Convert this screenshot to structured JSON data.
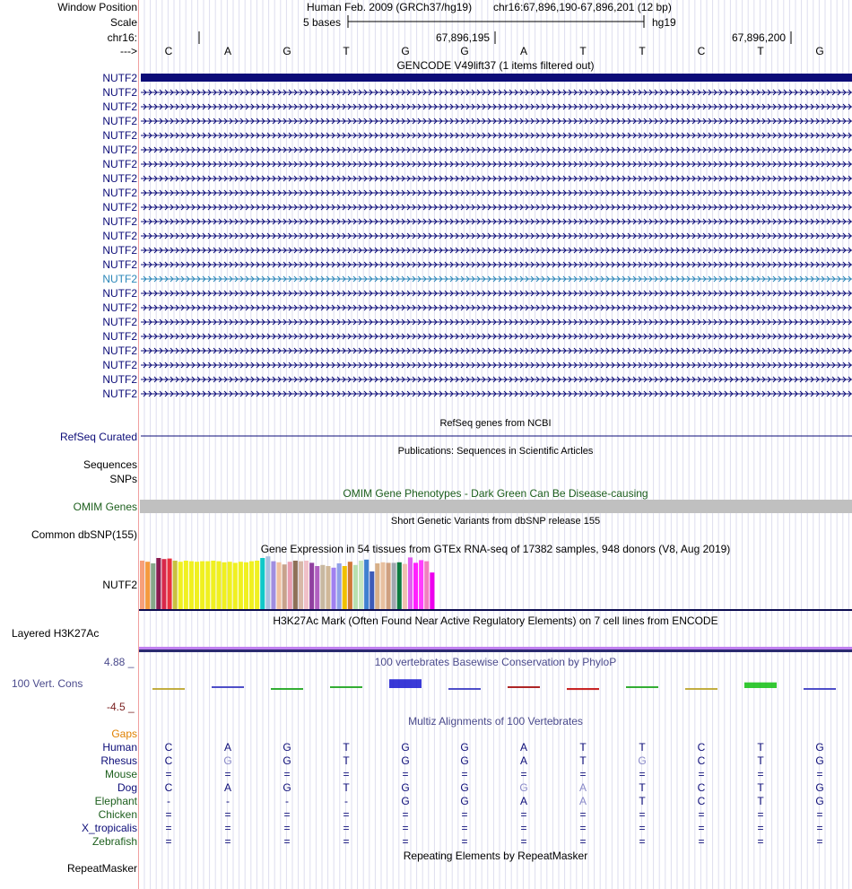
{
  "header": {
    "window_position_label": "Window Position",
    "assembly_text": "Human Feb. 2009 (GRCh37/hg19)",
    "position_text": "chr16:67,896,190-67,896,201 (12 bp)",
    "scale_label": "Scale",
    "scale_bar_text": "5 bases",
    "scale_db": "hg19",
    "chrom_label": "chr16:",
    "strand_label": "--->",
    "coord_1": "67,896,195",
    "coord_2": "67,896,200"
  },
  "bases": [
    "C",
    "A",
    "G",
    "T",
    "G",
    "G",
    "A",
    "T",
    "T",
    "C",
    "T",
    "G"
  ],
  "gencode": {
    "title": "GENCODE V49lift37 (1 items filtered out)",
    "first_item": "NUTF2",
    "items": [
      "NUTF2",
      "NUTF2",
      "NUTF2",
      "NUTF2",
      "NUTF2",
      "NUTF2",
      "NUTF2",
      "NUTF2",
      "NUTF2",
      "NUTF2",
      "NUTF2",
      "NUTF2",
      "NUTF2",
      "NUTF2",
      "NUTF2",
      "NUTF2",
      "NUTF2",
      "NUTF2",
      "NUTF2",
      "NUTF2",
      "NUTF2",
      "NUTF2"
    ],
    "highlight_index": 13,
    "colors": {
      "navy": "#0c0c78",
      "highlight": "#2a86b8"
    }
  },
  "refseq": {
    "title": "RefSeq genes from NCBI",
    "label": "RefSeq Curated"
  },
  "publications": {
    "title": "Publications: Sequences in Scientific Articles",
    "label_1": "Sequences",
    "label_2": "SNPs"
  },
  "omim": {
    "title": "OMIM Gene Phenotypes - Dark Green Can Be Disease-causing",
    "label": "OMIM Genes"
  },
  "dbsnp": {
    "title": "Short Genetic Variants from dbSNP release 155",
    "label": "Common dbSNP(155)"
  },
  "gtex": {
    "title": "Gene Expression in 54 tissues from GTEx RNA-seq of 17382 samples, 948 donors (V8, Aug 2019)",
    "label": "NUTF2",
    "values": [
      0.9,
      0.88,
      0.85,
      0.95,
      0.93,
      0.94,
      0.9,
      0.88,
      0.9,
      0.89,
      0.88,
      0.89,
      0.89,
      0.9,
      0.89,
      0.87,
      0.88,
      0.86,
      0.88,
      0.87,
      0.89,
      0.9,
      0.95,
      0.98,
      0.89,
      0.87,
      0.83,
      0.88,
      0.9,
      0.89,
      0.9,
      0.86,
      0.8,
      0.82,
      0.8,
      0.77,
      0.85,
      0.8,
      0.88,
      0.82,
      0.9,
      0.92,
      0.7,
      0.85,
      0.87,
      0.86,
      0.86,
      0.87,
      0.84,
      0.96,
      0.86,
      0.91,
      0.89,
      0.68
    ],
    "colors": [
      "#f7a07a",
      "#f59a3e",
      "#86a88a",
      "#8b1c50",
      "#d8284a",
      "#e9303f",
      "#c8c040",
      "#f0f020",
      "#f0f020",
      "#f0f020",
      "#f0f020",
      "#f0f020",
      "#f0f020",
      "#f0f020",
      "#f0f020",
      "#f0f020",
      "#f0f020",
      "#f0f020",
      "#f0f020",
      "#f0f020",
      "#f0f020",
      "#f0f020",
      "#10c8c8",
      "#a9c0e0",
      "#a08ee0",
      "#f0c0a0",
      "#c8a28c",
      "#e89db0",
      "#8e7058",
      "#d8b8a8",
      "#f0c0c8",
      "#9040a0",
      "#b060c0",
      "#c8b8a0",
      "#d0b898",
      "#a080f0",
      "#90a0e8",
      "#f0c000",
      "#d07838",
      "#b8e0b0",
      "#c8e8c0",
      "#4080d0",
      "#3c5ab8",
      "#d8b088",
      "#e8c0a0",
      "#d0a080",
      "#a0a8b0",
      "#0c7a40",
      "#f0c0b0",
      "#e060f0",
      "#ff20ff",
      "#ff3dff",
      "#f080c0",
      "#ee00ee"
    ]
  },
  "h3k27ac": {
    "title": "H3K27Ac Mark (Often Found Near Active Regulatory Elements) on 7 cell lines from ENCODE",
    "label": "Layered H3K27Ac"
  },
  "phylop": {
    "title": "100 vertebrates Basewise Conservation by PhyloP",
    "label": "100 Vert. Cons",
    "max_label": "4.88 _",
    "min_label": "-4.5 _",
    "scores": [
      -0.4,
      0.0,
      -0.3,
      0.5,
      2.8,
      -0.15,
      0.0,
      -0.6,
      0.25,
      -0.4,
      1.8,
      -0.15
    ],
    "glyph_colors": [
      "#b8a020",
      "#3030c0",
      "#10a010",
      "#10a010",
      "#1818d0",
      "#3030c0",
      "#a00000",
      "#c00000",
      "#10a010",
      "#b8a020",
      "#10c010",
      "#3030c0"
    ]
  },
  "multiz": {
    "title": "Multiz Alignments of 100 Vertebrates",
    "gaps_label": "Gaps",
    "species": [
      {
        "name": "Human",
        "color": "#0c0c78",
        "row": [
          "C",
          "A",
          "G",
          "T",
          "G",
          "G",
          "A",
          "T",
          "T",
          "C",
          "T",
          "G"
        ],
        "dim": []
      },
      {
        "name": "Rhesus",
        "color": "#0c0c78",
        "row": [
          "C",
          "G",
          "G",
          "T",
          "G",
          "G",
          "A",
          "T",
          "G",
          "C",
          "T",
          "G"
        ],
        "dim": [
          1,
          8
        ]
      },
      {
        "name": "Mouse",
        "color": "#1d5f1d",
        "row": [
          "=",
          "=",
          "=",
          "=",
          "=",
          "=",
          "=",
          "=",
          "=",
          "=",
          "=",
          "="
        ],
        "dim": []
      },
      {
        "name": "Dog",
        "color": "#0c0c78",
        "row": [
          "C",
          "A",
          "G",
          "T",
          "G",
          "G",
          "G",
          "A",
          "T",
          "C",
          "T",
          "G"
        ],
        "dim": [
          6,
          7
        ]
      },
      {
        "name": "Elephant",
        "color": "#1d5f1d",
        "row": [
          "-",
          "-",
          "-",
          "-",
          "G",
          "G",
          "A",
          "A",
          "T",
          "C",
          "T",
          "G"
        ],
        "dim": [
          7
        ]
      },
      {
        "name": "Chicken",
        "color": "#1d5f1d",
        "row": [
          "=",
          "=",
          "=",
          "=",
          "=",
          "=",
          "=",
          "=",
          "=",
          "=",
          "=",
          "="
        ],
        "dim": []
      },
      {
        "name": "X_tropicalis",
        "color": "#0c0c78",
        "row": [
          "=",
          "=",
          "=",
          "=",
          "=",
          "=",
          "=",
          "=",
          "=",
          "=",
          "=",
          "="
        ],
        "dim": []
      },
      {
        "name": "Zebrafish",
        "color": "#1d5f1d",
        "row": [
          "=",
          "=",
          "=",
          "=",
          "=",
          "=",
          "=",
          "=",
          "=",
          "=",
          "=",
          "="
        ],
        "dim": []
      }
    ]
  },
  "repeatmasker": {
    "title": "Repeating Elements by RepeatMasker",
    "label": "RepeatMasker"
  }
}
